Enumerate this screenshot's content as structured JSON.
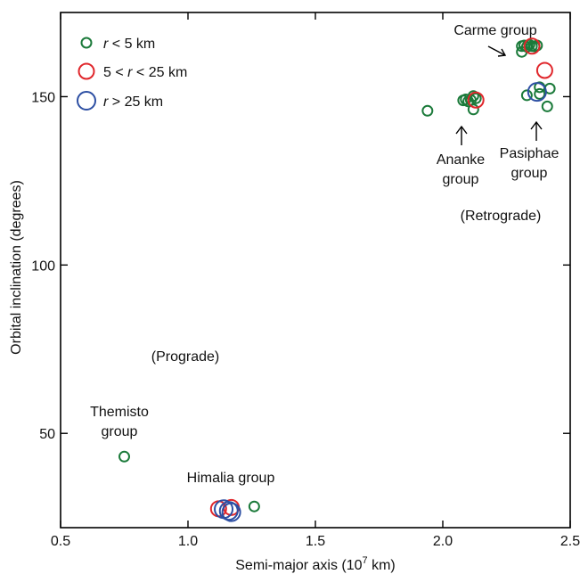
{
  "chart_data": {
    "type": "scatter",
    "title": "",
    "xlabel": "Semi-major axis (10",
    "xlabel_sup": "7",
    "xlabel_unit": " km)",
    "ylabel": "Orbital inclination (degrees)",
    "xlim": [
      0.5,
      2.5
    ],
    "ylim": [
      22,
      175
    ],
    "x_ticks": [
      0.5,
      1.0,
      1.5,
      2.0,
      2.5
    ],
    "x_tick_labels": [
      "0.5",
      "1.0",
      "1.5",
      "2.0",
      "2.5"
    ],
    "y_ticks": [
      50,
      100,
      150
    ],
    "y_tick_labels": [
      "50",
      "100",
      "150"
    ],
    "grid": false,
    "legend_position": "top-left",
    "series": [
      {
        "name": "r < 5 km",
        "color": "#1b7a3a",
        "size_class": "small",
        "points": [
          [
            0.75,
            43.1
          ],
          [
            1.26,
            28.3
          ],
          [
            1.94,
            145.8
          ],
          [
            2.08,
            148.9
          ],
          [
            2.09,
            149.2
          ],
          [
            2.1,
            148.6
          ],
          [
            2.11,
            149.0
          ],
          [
            2.12,
            150.2
          ],
          [
            2.12,
            146.2
          ],
          [
            2.13,
            149.5
          ],
          [
            2.31,
            163.3
          ],
          [
            2.31,
            165.0
          ],
          [
            2.32,
            165.2
          ],
          [
            2.33,
            164.8
          ],
          [
            2.34,
            165.4
          ],
          [
            2.35,
            165.0
          ],
          [
            2.36,
            164.9
          ],
          [
            2.37,
            165.2
          ],
          [
            2.33,
            150.4
          ],
          [
            2.38,
            152.8
          ],
          [
            2.38,
            150.8
          ],
          [
            2.41,
            147.1
          ],
          [
            2.42,
            152.4
          ]
        ]
      },
      {
        "name": "5 < r < 25 km",
        "color": "#e0262b",
        "size_class": "medium",
        "points": [
          [
            1.12,
            27.6
          ],
          [
            1.17,
            28.0
          ],
          [
            2.13,
            149.0
          ],
          [
            2.35,
            165.0
          ],
          [
            2.4,
            157.8
          ]
        ]
      },
      {
        "name": "r > 25 km",
        "color": "#2d4fa3",
        "size_class": "large",
        "points": [
          [
            1.14,
            27.5
          ],
          [
            1.16,
            27.0
          ],
          [
            1.17,
            26.6
          ],
          [
            2.37,
            151.4
          ]
        ]
      }
    ],
    "legend": [
      {
        "label_pre": "r",
        "label_post": " < 5 km"
      },
      {
        "label_pre": "5 < ",
        "label_mid": "r",
        "label_post": " < 25 km"
      },
      {
        "label_pre": "r",
        "label_post": " > 25 km"
      }
    ],
    "annotations": {
      "carme": "Carme group",
      "ananke_1": "Ananke",
      "ananke_2": "group",
      "pasiphae_1": "Pasiphae",
      "pasiphae_2": "group",
      "retrograde": "(Retrograde)",
      "prograde": "(Prograde)",
      "themisto_1": "Themisto",
      "themisto_2": "group",
      "himalia": "Himalia group"
    }
  }
}
